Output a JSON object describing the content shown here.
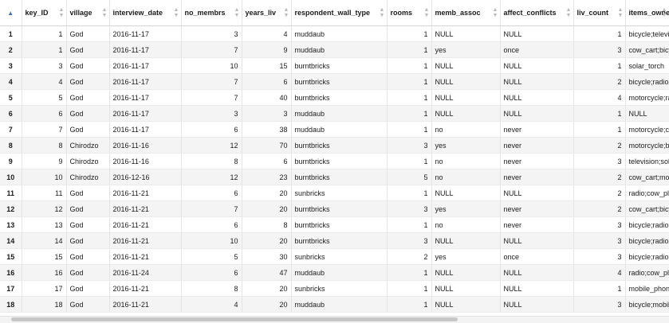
{
  "columns": [
    "key_ID",
    "village",
    "interview_date",
    "no_membrs",
    "years_liv",
    "respondent_wall_type",
    "rooms",
    "memb_assoc",
    "affect_conflicts",
    "liv_count",
    "items_owned"
  ],
  "sort_icon": "sort-arrows-icon",
  "rows": [
    [
      "1",
      "1",
      "God",
      "2016-11-17",
      "3",
      "4",
      "muddaub",
      "1",
      "NULL",
      "NULL",
      "1",
      "bicycle;televisi"
    ],
    [
      "2",
      "1",
      "God",
      "2016-11-17",
      "7",
      "9",
      "muddaub",
      "1",
      "yes",
      "once",
      "3",
      "cow_cart;bicyc"
    ],
    [
      "3",
      "3",
      "God",
      "2016-11-17",
      "10",
      "15",
      "burntbricks",
      "1",
      "NULL",
      "NULL",
      "1",
      "solar_torch"
    ],
    [
      "4",
      "4",
      "God",
      "2016-11-17",
      "7",
      "6",
      "burntbricks",
      "1",
      "NULL",
      "NULL",
      "2",
      "bicycle;radio;co"
    ],
    [
      "5",
      "5",
      "God",
      "2016-11-17",
      "7",
      "40",
      "burntbricks",
      "1",
      "NULL",
      "NULL",
      "4",
      "motorcycle;radi"
    ],
    [
      "6",
      "6",
      "God",
      "2016-11-17",
      "3",
      "3",
      "muddaub",
      "1",
      "NULL",
      "NULL",
      "1",
      "NULL"
    ],
    [
      "7",
      "7",
      "God",
      "2016-11-17",
      "6",
      "38",
      "muddaub",
      "1",
      "no",
      "never",
      "1",
      "motorcycle;cow"
    ],
    [
      "8",
      "8",
      "Chirodzo",
      "2016-11-16",
      "12",
      "70",
      "burntbricks",
      "3",
      "yes",
      "never",
      "2",
      "motorcycle;bicy"
    ],
    [
      "9",
      "9",
      "Chirodzo",
      "2016-11-16",
      "8",
      "6",
      "burntbricks",
      "1",
      "no",
      "never",
      "3",
      "television;solar"
    ],
    [
      "10",
      "10",
      "Chirodzo",
      "2016-12-16",
      "12",
      "23",
      "burntbricks",
      "5",
      "no",
      "never",
      "2",
      "cow_cart;moto"
    ],
    [
      "11",
      "11",
      "God",
      "2016-11-21",
      "6",
      "20",
      "sunbricks",
      "1",
      "NULL",
      "NULL",
      "2",
      "radio;cow_plou"
    ],
    [
      "12",
      "12",
      "God",
      "2016-11-21",
      "7",
      "20",
      "burntbricks",
      "3",
      "yes",
      "never",
      "2",
      "cow_cart;bicyc"
    ],
    [
      "13",
      "13",
      "God",
      "2016-11-21",
      "6",
      "8",
      "burntbricks",
      "1",
      "no",
      "never",
      "3",
      "bicycle;radio;co"
    ],
    [
      "14",
      "14",
      "God",
      "2016-11-21",
      "10",
      "20",
      "burntbricks",
      "3",
      "NULL",
      "NULL",
      "3",
      "bicycle;radio;co"
    ],
    [
      "15",
      "15",
      "God",
      "2016-11-21",
      "5",
      "30",
      "sunbricks",
      "2",
      "yes",
      "once",
      "3",
      "bicycle;radio;co"
    ],
    [
      "16",
      "16",
      "God",
      "2016-11-24",
      "6",
      "47",
      "muddaub",
      "1",
      "NULL",
      "NULL",
      "4",
      "radio;cow_plou"
    ],
    [
      "17",
      "17",
      "God",
      "2016-11-21",
      "8",
      "20",
      "sunbricks",
      "1",
      "NULL",
      "NULL",
      "1",
      "mobile_phone"
    ],
    [
      "18",
      "18",
      "God",
      "2016-11-21",
      "4",
      "20",
      "muddaub",
      "1",
      "NULL",
      "NULL",
      "3",
      "bicycle;mobile"
    ]
  ]
}
